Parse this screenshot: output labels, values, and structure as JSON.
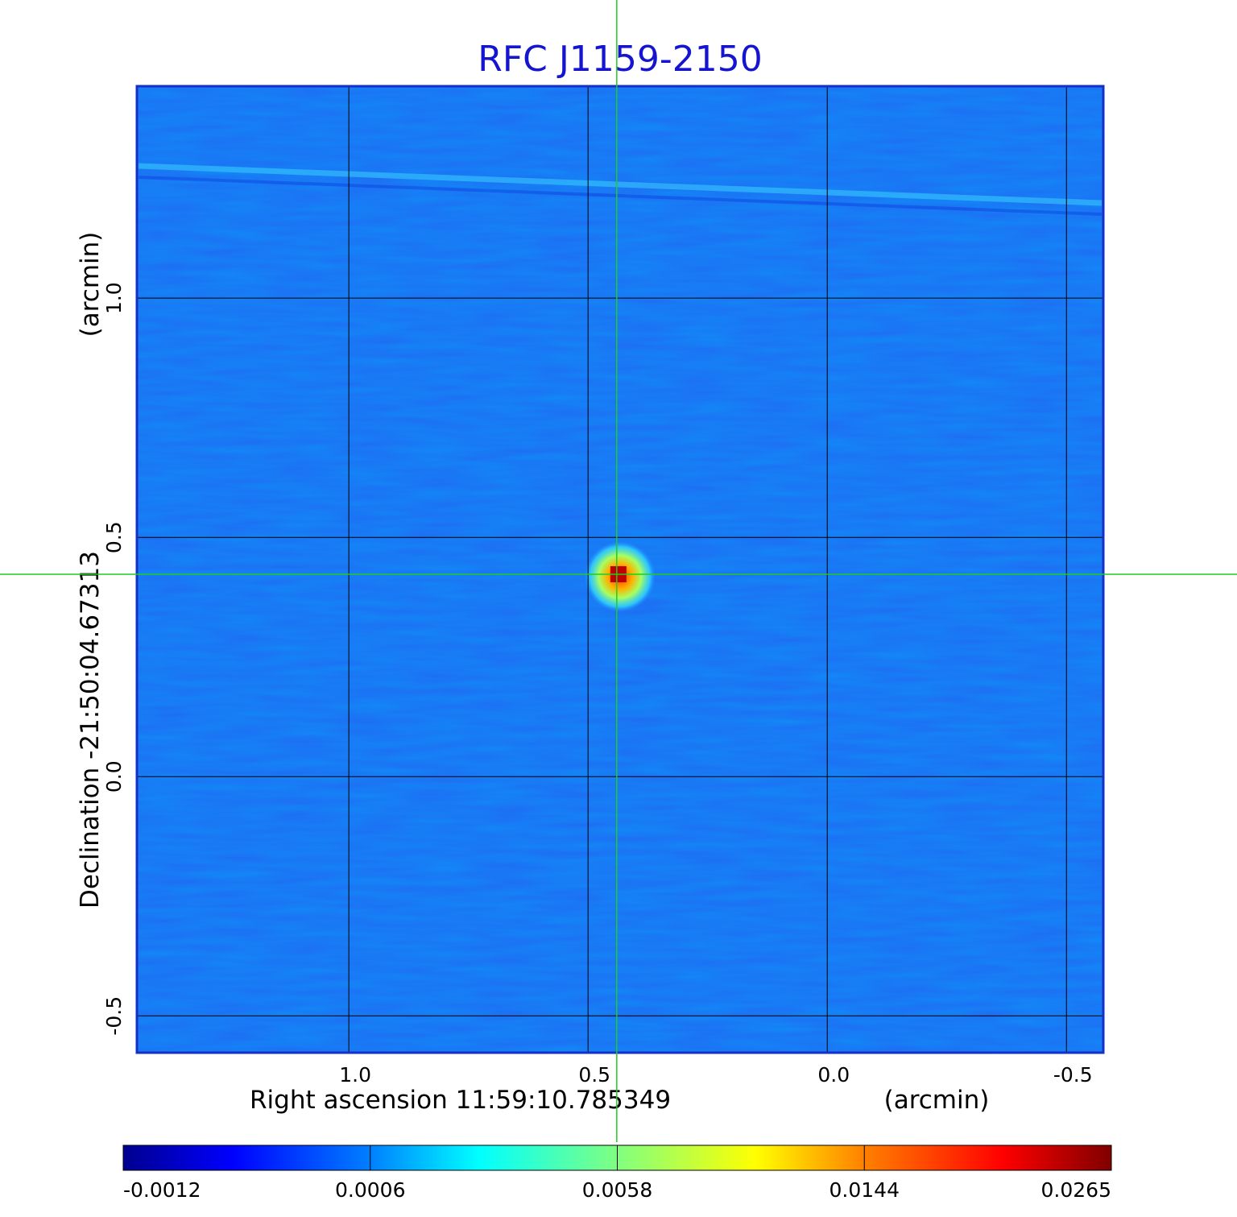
{
  "chart_data": {
    "type": "heatmap",
    "title": "RFC J1159-2150",
    "xlabel": "Right ascension  11:59:10.785349",
    "xunit": "(arcmin)",
    "ylabel": "Declination  -21:50:04.67313",
    "yunit": "(arcmin)",
    "x_ticks": [
      "1.0",
      "0.5",
      "0.0",
      "-0.5"
    ],
    "x_tick_values": [
      1.0,
      0.5,
      0.0,
      -0.5
    ],
    "y_ticks": [
      "1.0",
      "0.5",
      "0.0",
      "-0.5"
    ],
    "y_tick_values": [
      1.0,
      0.5,
      0.0,
      -0.5
    ],
    "xlim": [
      1.443,
      -0.577
    ],
    "ylim": [
      -0.577,
      1.443
    ],
    "grid": true,
    "crosshair": {
      "x": 0.44,
      "y": 0.423
    },
    "source_peak": {
      "x": 0.44,
      "y": 0.423,
      "value": 0.0265
    },
    "colorbar": {
      "colormap": "jet",
      "tick_labels": [
        "-0.0012",
        "0.0006",
        "0.0058",
        "0.0144",
        "0.0265"
      ],
      "tick_values": [
        -0.0012,
        0.0006,
        0.0058,
        0.0144,
        0.0265
      ]
    },
    "colors": {
      "title": "#1515d0",
      "background_field": "#1e6cf0",
      "crosshair": "#22cc22",
      "grid": "#000000",
      "frame": "#1530c8"
    }
  }
}
